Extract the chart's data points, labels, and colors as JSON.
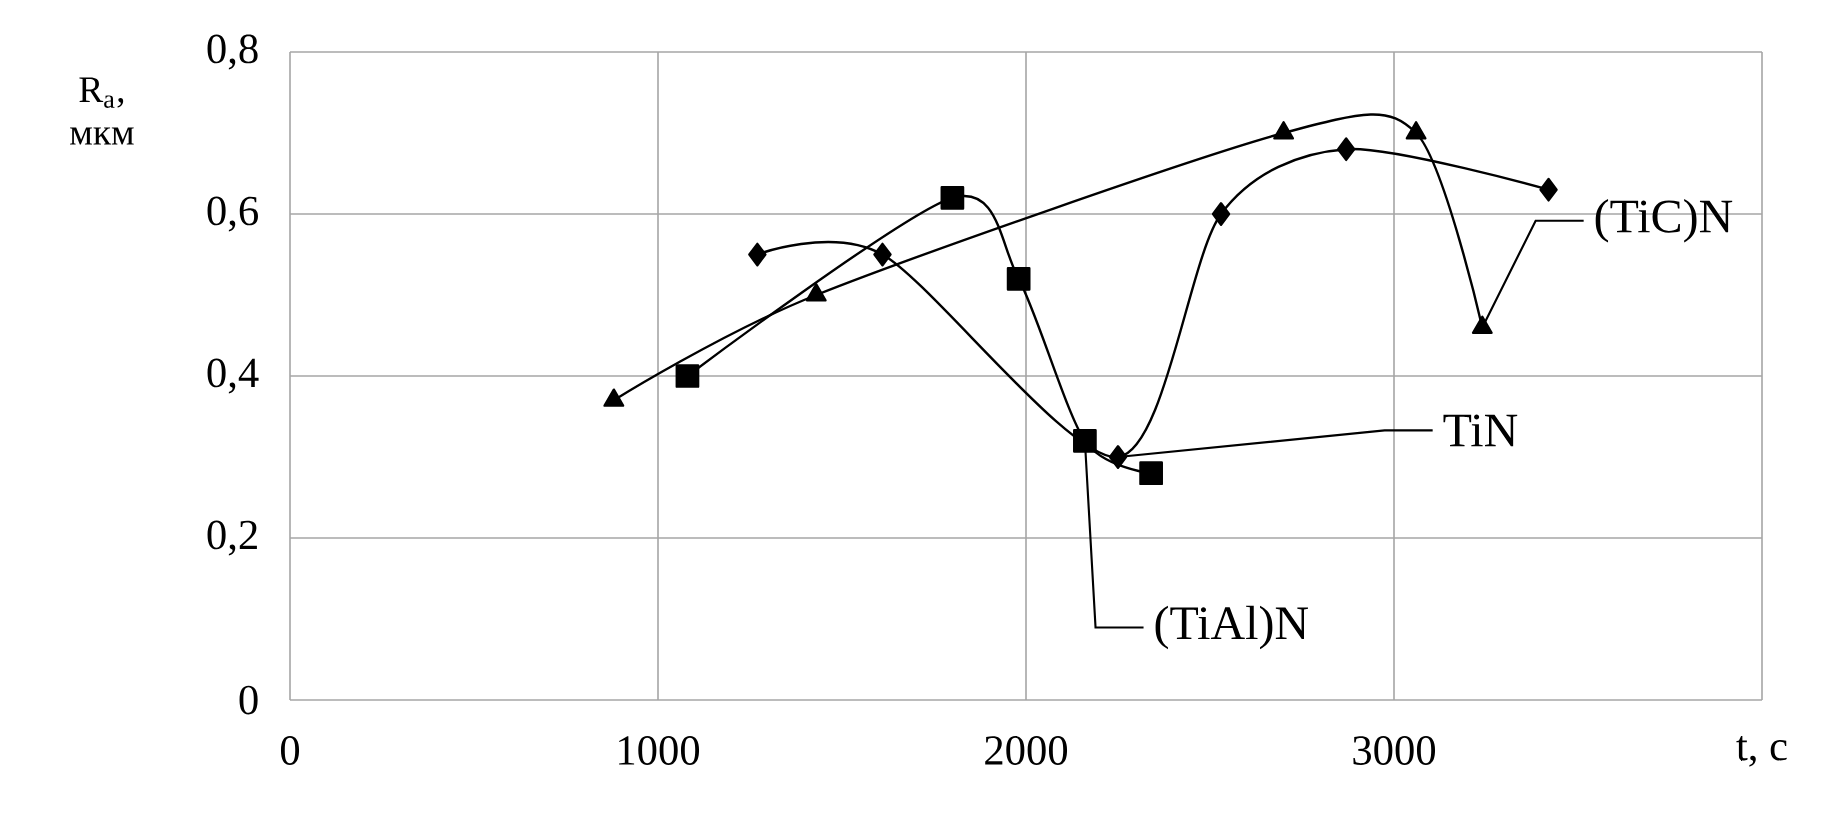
{
  "chart_data": {
    "type": "line",
    "xlabel": "t, c",
    "ylabel": "R$_{a}$, мкм",
    "xlim": [
      0,
      4000
    ],
    "xticks": [
      0,
      1000,
      2000,
      3000,
      {
        "value": 4000,
        "label": null
      }
    ],
    "ylim": [
      0,
      0.8
    ],
    "yticks": [
      0,
      {
        "value": 0.2,
        "label": "0,2"
      },
      {
        "value": 0.4,
        "label": "0,4"
      },
      {
        "value": 0.6,
        "label": "0,6"
      },
      {
        "value": 0.8,
        "label": "0,8"
      }
    ],
    "grid": true,
    "series": [
      {
        "name": "(TiC)N",
        "color": "#000000",
        "marker": "triangle",
        "x": [
          880,
          1430,
          2700,
          3060,
          3240
        ],
        "values": [
          0.37,
          0.5,
          0.7,
          0.7,
          0.46
        ]
      },
      {
        "name": "TiN",
        "color": "#000000",
        "marker": "diamond",
        "x": [
          1270,
          1610,
          2250,
          2530,
          2870,
          3420
        ],
        "values": [
          0.55,
          0.55,
          0.3,
          0.6,
          0.68,
          0.63
        ]
      },
      {
        "name": "(TiAl)N",
        "color": "#000000",
        "marker": "square",
        "x": [
          1080,
          1800,
          1980,
          2160,
          2340
        ],
        "values": [
          0.4,
          0.62,
          0.52,
          0.32,
          0.28
        ]
      }
    ]
  }
}
